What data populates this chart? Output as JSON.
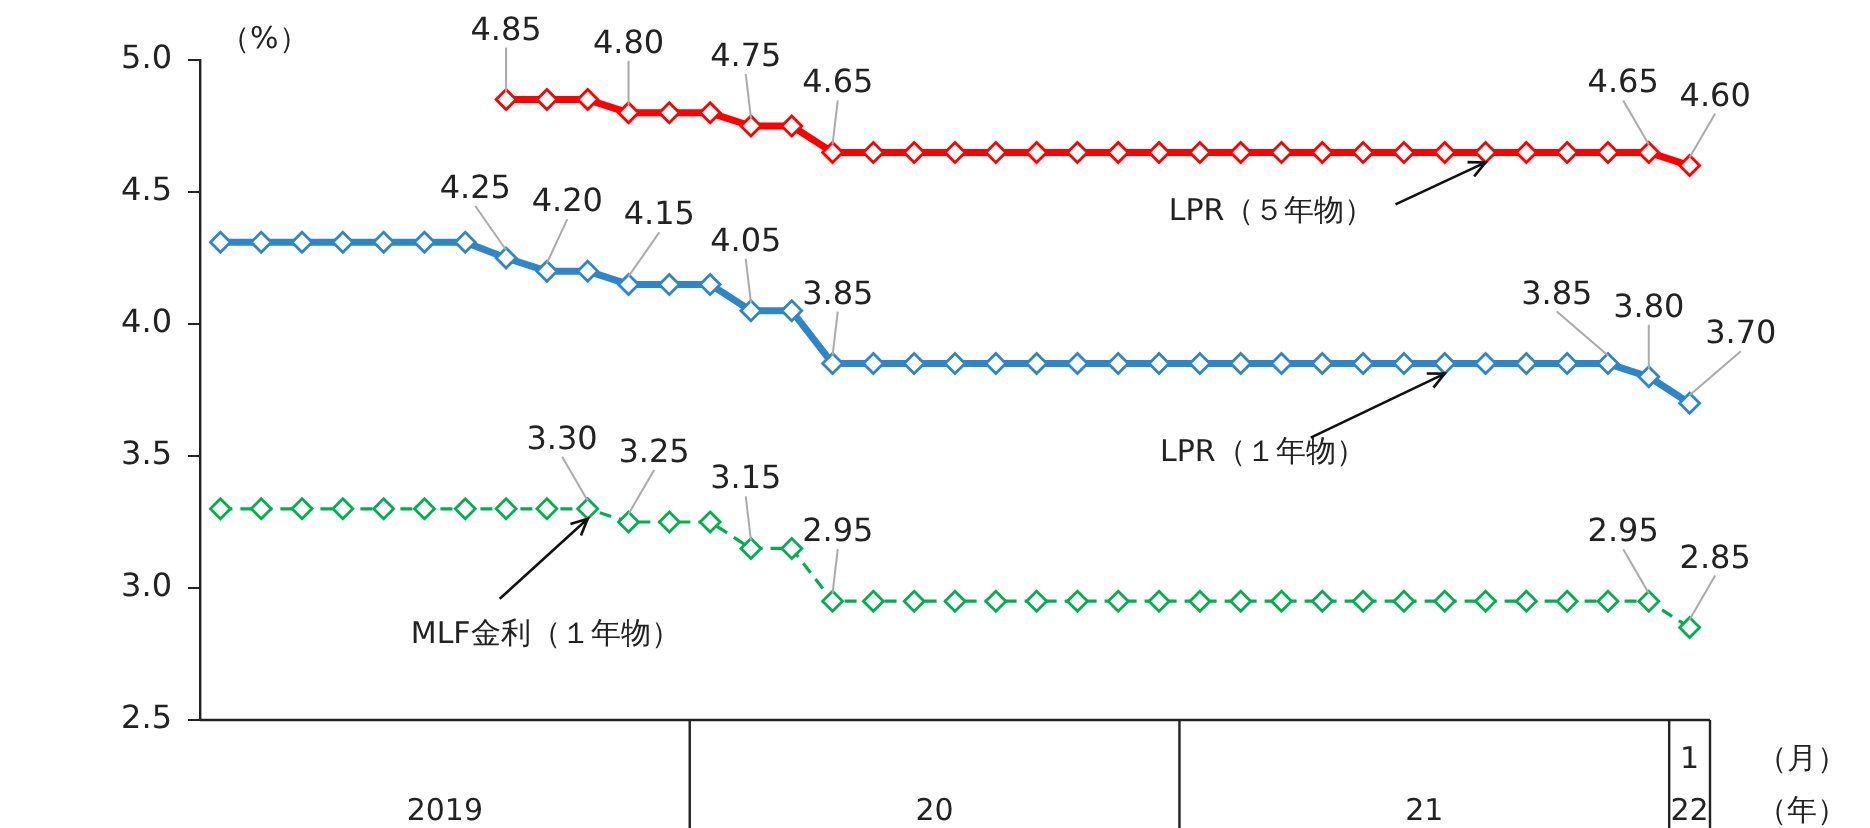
{
  "chart_data": {
    "type": "line",
    "ylabel": "（%）",
    "categories": [
      null,
      null,
      null,
      null,
      null,
      null,
      null,
      null,
      null,
      null,
      null,
      null,
      null,
      null,
      null,
      null,
      null,
      null,
      null,
      null,
      null,
      null,
      null,
      null,
      null,
      null,
      null,
      null,
      null,
      null,
      null,
      null,
      null,
      null,
      null,
      null,
      "1"
    ],
    "annotations": [
      "2019",
      "20",
      "21",
      "22",
      "（月）",
      "（年）"
    ],
    "ylim": [
      2.5,
      5.0
    ],
    "yticks": [
      2.5,
      {
        "value": 3,
        "label": "3.0"
      },
      3.5,
      {
        "value": 4,
        "label": "4.0"
      },
      4.5,
      {
        "value": 5,
        "label": "5.0"
      }
    ],
    "grid": false,
    "legend": false,
    "marker": "diamond",
    "series": [
      {
        "name": "LPR（５年物）",
        "color": "#ff0000",
        "line_style": "solid",
        "values": [
          null,
          null,
          null,
          null,
          null,
          null,
          null,
          4.85,
          4.85,
          4.85,
          4.8,
          4.8,
          4.8,
          4.75,
          4.75,
          4.65,
          4.65,
          4.65,
          4.65,
          4.65,
          4.65,
          4.65,
          4.65,
          4.65,
          4.65,
          4.65,
          4.65,
          4.65,
          4.65,
          4.65,
          4.65,
          4.65,
          4.65,
          4.65,
          4.65,
          4.65,
          4.6
        ],
        "value_labels": [
          null,
          null,
          null,
          null,
          null,
          null,
          null,
          "4.85",
          null,
          null,
          "4.80",
          null,
          null,
          "4.75",
          null,
          "4.65",
          null,
          null,
          null,
          null,
          null,
          null,
          null,
          null,
          null,
          null,
          null,
          null,
          null,
          null,
          null,
          null,
          null,
          null,
          null,
          "4.65",
          "4.60"
        ]
      },
      {
        "name": "LPR（１年物）",
        "color": "#2e86c8",
        "line_style": "solid",
        "values": [
          4.31,
          4.31,
          4.31,
          4.31,
          4.31,
          4.31,
          4.31,
          4.25,
          4.2,
          4.2,
          4.15,
          4.15,
          4.15,
          4.05,
          4.05,
          3.85,
          3.85,
          3.85,
          3.85,
          3.85,
          3.85,
          3.85,
          3.85,
          3.85,
          3.85,
          3.85,
          3.85,
          3.85,
          3.85,
          3.85,
          3.85,
          3.85,
          3.85,
          3.85,
          3.85,
          3.8,
          3.7
        ],
        "value_labels": [
          null,
          null,
          null,
          null,
          null,
          null,
          null,
          "4.25",
          "4.20",
          null,
          "4.15",
          null,
          null,
          "4.05",
          null,
          "3.85",
          null,
          null,
          null,
          null,
          null,
          null,
          null,
          null,
          null,
          null,
          null,
          null,
          null,
          null,
          null,
          null,
          null,
          null,
          "3.85",
          "3.80",
          "3.70"
        ]
      },
      {
        "name": "MLF金利（１年物）",
        "color": "#00b050",
        "line_style": "dashed",
        "values": [
          3.3,
          3.3,
          3.3,
          3.3,
          3.3,
          3.3,
          3.3,
          3.3,
          3.3,
          3.3,
          3.25,
          3.25,
          3.25,
          3.15,
          3.15,
          2.95,
          2.95,
          2.95,
          2.95,
          2.95,
          2.95,
          2.95,
          2.95,
          2.95,
          2.95,
          2.95,
          2.95,
          2.95,
          2.95,
          2.95,
          2.95,
          2.95,
          2.95,
          2.95,
          2.95,
          2.95,
          2.85
        ],
        "value_labels": [
          null,
          null,
          null,
          null,
          null,
          null,
          null,
          null,
          null,
          "3.30",
          "3.25",
          null,
          null,
          "3.15",
          null,
          "2.95",
          null,
          null,
          null,
          null,
          null,
          null,
          null,
          null,
          null,
          null,
          null,
          null,
          null,
          null,
          null,
          null,
          null,
          null,
          null,
          "2.95",
          "2.85"
        ]
      }
    ]
  }
}
